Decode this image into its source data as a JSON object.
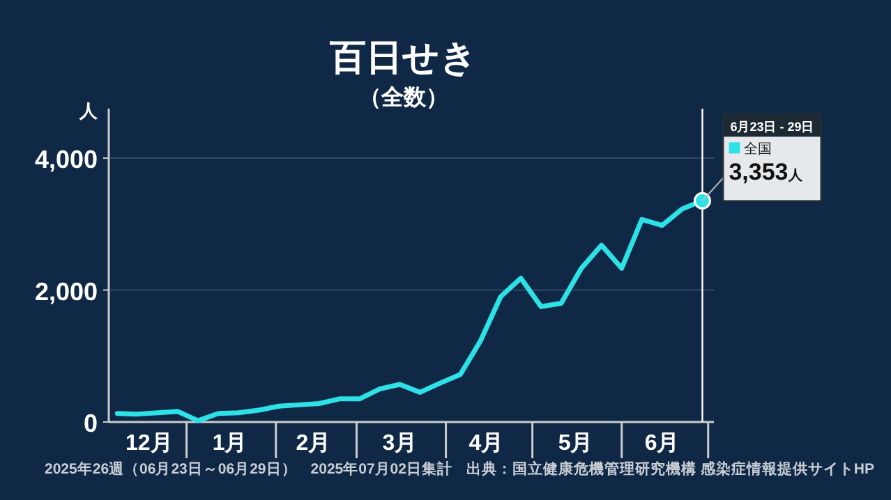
{
  "chart_data": {
    "type": "line",
    "title": "百日せき",
    "subtitle": "（全数）",
    "ylabel": "人",
    "x": [
      "2024-12-08",
      "2024-12-15",
      "2024-12-22",
      "2024-12-29",
      "2025-01-05",
      "2025-01-12",
      "2025-01-19",
      "2025-01-26",
      "2025-02-02",
      "2025-02-09",
      "2025-02-16",
      "2025-02-23",
      "2025-03-02",
      "2025-03-09",
      "2025-03-16",
      "2025-03-23",
      "2025-03-30",
      "2025-04-06",
      "2025-04-13",
      "2025-04-20",
      "2025-04-27",
      "2025-05-04",
      "2025-05-11",
      "2025-05-18",
      "2025-05-25",
      "2025-06-01",
      "2025-06-08",
      "2025-06-15",
      "2025-06-22",
      "2025-06-29"
    ],
    "series": [
      {
        "name": "全国",
        "color": "#2de2e6",
        "values": [
          130,
          120,
          140,
          160,
          20,
          130,
          140,
          180,
          240,
          260,
          280,
          350,
          350,
          500,
          570,
          450,
          590,
          720,
          1230,
          1900,
          2180,
          1750,
          1800,
          2330,
          2680,
          2330,
          3070,
          2980,
          3230,
          3353
        ],
        "value_labels": [
          null,
          null,
          null,
          null,
          null,
          null,
          null,
          null,
          null,
          null,
          null,
          null,
          null,
          null,
          null,
          null,
          null,
          null,
          null,
          null,
          null,
          null,
          null,
          null,
          null,
          null,
          null,
          null,
          null,
          "3,353人"
        ]
      }
    ],
    "xlim": [
      "2024-12-05",
      "2025-07-03"
    ],
    "xticks": [
      {
        "value": "2024-12-19",
        "label": "12月"
      },
      {
        "value": "2025-01-16",
        "label": "1月"
      },
      {
        "value": "2025-02-14",
        "label": "2月"
      },
      {
        "value": "2025-03-16",
        "label": "3月"
      },
      {
        "value": "2025-04-15",
        "label": "4月"
      },
      {
        "value": "2025-05-16",
        "label": "5月"
      },
      {
        "value": "2025-06-15",
        "label": "6月"
      }
    ],
    "ylim": [
      0,
      4750
    ],
    "yticks": [
      0,
      {
        "value": 2000,
        "label": "2,000"
      },
      {
        "value": 4000,
        "label": "4,000"
      }
    ],
    "grid": "y",
    "legend": "right",
    "ref_lines": [
      {
        "axis": "x",
        "value": "2025-06-29",
        "color": "#ffffff"
      }
    ],
    "annotations": [
      "6月23日 - 29日",
      "2025年26週（06月23日～06月29日）",
      "2025年07月02日集計",
      "出典：国立健康危機管理研究機構 感染症情報提供サイトHP"
    ]
  }
}
